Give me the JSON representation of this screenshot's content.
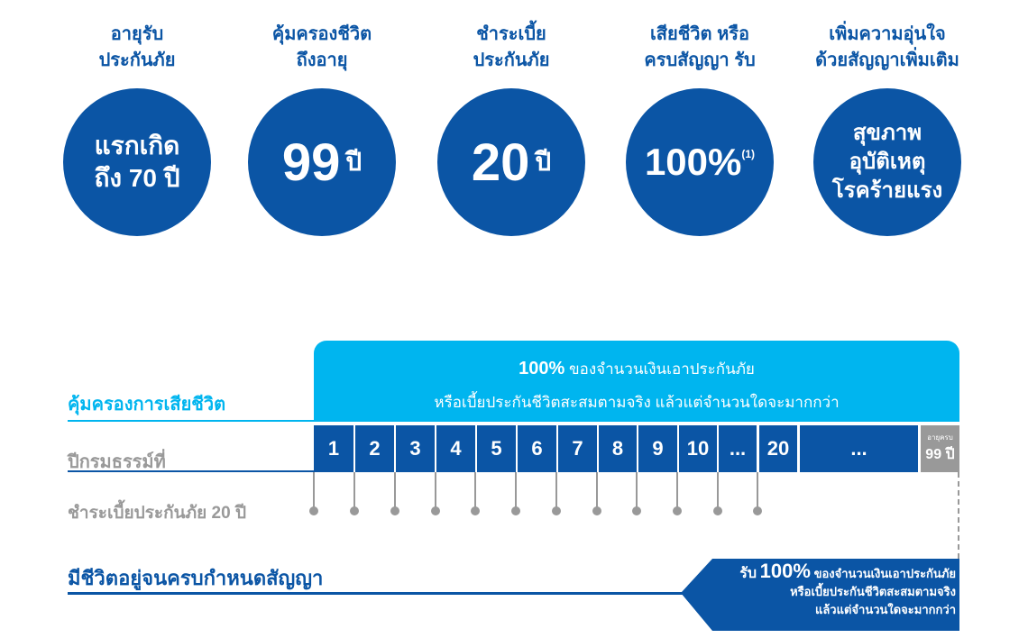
{
  "colors": {
    "dark_blue": "#0b55a5",
    "light_blue": "#00b5ef",
    "gray": "#999999"
  },
  "features": [
    {
      "heading": "อายุรับ\nประกันภัย",
      "circle_text": "แรกเกิด\nถึง 70 ปี"
    },
    {
      "heading": "คุ้มครองชีวิต\nถึงอายุ",
      "circle_value": "99",
      "circle_unit": "ปี"
    },
    {
      "heading": "ชำระเบี้ย\nประกันภัย",
      "circle_value": "20",
      "circle_unit": "ปี"
    },
    {
      "heading": "เสียชีวิต หรือ\nครบสัญญา รับ",
      "circle_value": "100%",
      "circle_note": "(1)"
    },
    {
      "heading": "เพิ่มความอุ่นใจ\nด้วยสัญญาเพิ่มเติม",
      "circle_text": "สุขภาพ\nอุบัติเหตุ\nโรคร้ายแรง"
    }
  ],
  "timeline": {
    "death_label": "คุ้มครองการเสียชีวิต",
    "death_benefit_pct": "100%",
    "death_benefit_line1": "ของจำนวนเงินเอาประกันภัย",
    "death_benefit_line2": "หรือเบี้ยประกันชีวิตสะสมตามจริง แล้วแต่จำนวนใดจะมากกว่า",
    "policy_year_label": "ปีกรมธรรม์ที่",
    "years": [
      "1",
      "2",
      "3",
      "4",
      "5",
      "6",
      "7",
      "8",
      "9",
      "10",
      "...",
      "20",
      "..."
    ],
    "end_label_top": "อายุครบ",
    "end_label": "99 ปี",
    "premium_label": "ชำระเบี้ยประกันภัย 20 ปี",
    "maturity_label": "มีชีวิตอยู่จนครบกำหนดสัญญา",
    "maturity_prefix": "รับ",
    "maturity_pct": "100%",
    "maturity_line1": "ของจำนวนเงินเอาประกันภัย",
    "maturity_line2": "หรือเบี้ยประกันชีวิตสะสมตามจริง",
    "maturity_line3": "แล้วแต่จำนวนใดจะมากกว่า"
  }
}
